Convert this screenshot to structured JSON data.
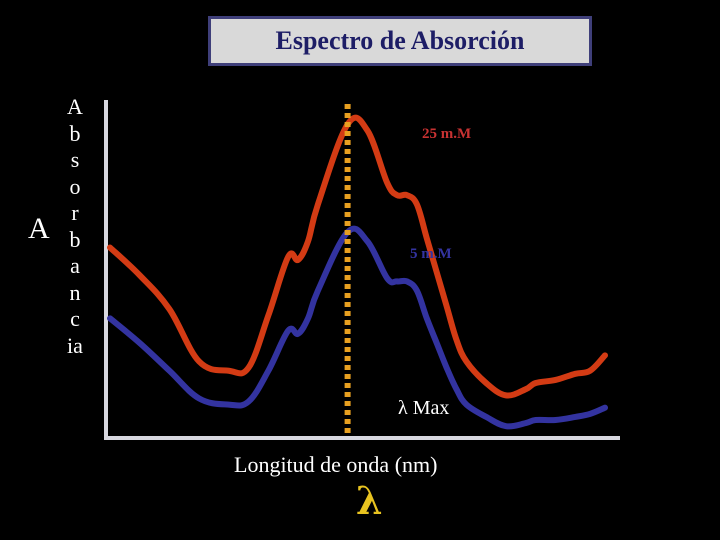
{
  "chart_data": {
    "type": "line",
    "title": "Espectro de Absorción",
    "xlabel": "Longitud de onda (nm)",
    "ylabel_big": "A",
    "ylabel_letters": [
      "A",
      "b",
      "s",
      "o",
      "r",
      "b",
      "a",
      "n",
      "c",
      "ia"
    ],
    "x_symbol": "λ",
    "xlim": [
      0,
      100
    ],
    "ylim": [
      0,
      100
    ],
    "grid": false,
    "series": [
      {
        "name": "25 m.M",
        "color": "#d33b14",
        "x": [
          0,
          6,
          12,
          18,
          24,
          28,
          32,
          36,
          38,
          40,
          42,
          48,
          52,
          56,
          58,
          60,
          62,
          64,
          66,
          68,
          70,
          72,
          76,
          80,
          84,
          86,
          90,
          94,
          97,
          100
        ],
        "y": [
          56,
          47,
          36,
          19,
          16,
          17,
          34,
          53,
          52,
          58,
          70,
          96,
          94,
          77,
          73,
          73,
          70,
          59,
          48,
          37,
          26,
          19,
          12,
          8,
          10,
          12,
          13,
          15,
          16,
          21
        ]
      },
      {
        "name": "5 m.M",
        "color": "#3333a0",
        "x": [
          0,
          6,
          12,
          18,
          24,
          28,
          32,
          36,
          38,
          40,
          42,
          48,
          52,
          56,
          58,
          60,
          62,
          64,
          66,
          68,
          70,
          72,
          76,
          80,
          84,
          86,
          90,
          94,
          97,
          100
        ],
        "y": [
          33,
          25,
          16,
          7,
          5,
          6,
          16,
          29,
          28,
          33,
          42,
          61,
          58,
          46,
          45,
          45,
          42,
          33,
          25,
          17,
          10,
          5,
          1,
          -2,
          -1,
          0,
          0,
          1,
          2,
          4
        ]
      }
    ],
    "annotations": [
      {
        "text": "25 m.M",
        "color": "#c83232"
      },
      {
        "text": "5 m.M",
        "color": "#3333a0"
      },
      {
        "text": "λ Max",
        "color": "#ffffff"
      }
    ],
    "lambda_max_x": 48,
    "lambda_max_color": "#e8a020",
    "axis_color": "#d8d8e0"
  }
}
